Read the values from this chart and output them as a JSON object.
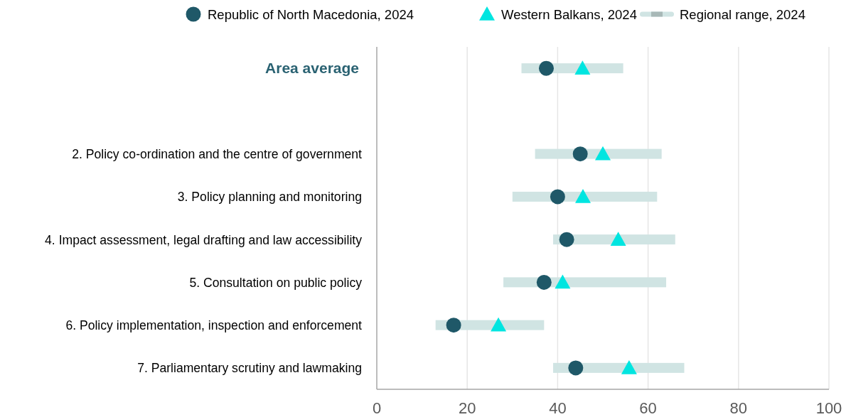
{
  "chart_data": {
    "type": "bar",
    "orientation": "horizontal",
    "categories": [
      "Area average",
      null,
      "2. Policy co-ordination and the centre of government",
      "3. Policy planning and monitoring",
      "4. Impact assessment, legal drafting and law accessibility",
      "5. Consultation on public policy",
      "6. Policy implementation, inspection and enforcement",
      "7. Parliamentary scrutiny and lawmaking"
    ],
    "series": [
      {
        "name": "Regional range, 2024",
        "type": "bar",
        "color": "#d0e4e3",
        "base": [
          32,
          null,
          35,
          30,
          39,
          28,
          13,
          39
        ],
        "values": [
          22.5,
          null,
          28,
          32,
          27,
          36,
          24,
          29
        ]
      },
      {
        "name": "Republic of North Macedonia, 2024",
        "type": "scatter",
        "marker": "circle",
        "color": "#1f5868",
        "values": [
          37.5,
          null,
          45,
          40,
          42,
          37,
          17,
          44
        ]
      },
      {
        "name": "Western Balkans, 2024",
        "type": "scatter",
        "marker": "triangle",
        "color": "#00e5e0",
        "values": [
          45.5,
          null,
          50,
          45.6,
          53.4,
          41.1,
          26.9,
          55.8
        ]
      }
    ],
    "xlim": [
      0,
      100
    ],
    "xticks": [
      0,
      20,
      40,
      60,
      80,
      100
    ],
    "grid": "x",
    "legend": "top"
  }
}
